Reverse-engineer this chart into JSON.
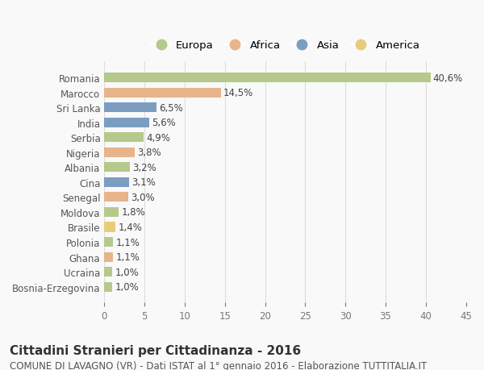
{
  "countries": [
    "Romania",
    "Marocco",
    "Sri Lanka",
    "India",
    "Serbia",
    "Nigeria",
    "Albania",
    "Cina",
    "Senegal",
    "Moldova",
    "Brasile",
    "Polonia",
    "Ghana",
    "Ucraina",
    "Bosnia-Erzegovina"
  ],
  "values": [
    40.6,
    14.5,
    6.5,
    5.6,
    4.9,
    3.8,
    3.2,
    3.1,
    3.0,
    1.8,
    1.4,
    1.1,
    1.1,
    1.0,
    1.0
  ],
  "labels": [
    "40,6%",
    "14,5%",
    "6,5%",
    "5,6%",
    "4,9%",
    "3,8%",
    "3,2%",
    "3,1%",
    "3,0%",
    "1,8%",
    "1,4%",
    "1,1%",
    "1,1%",
    "1,0%",
    "1,0%"
  ],
  "continents": [
    "Europa",
    "Africa",
    "Asia",
    "Asia",
    "Europa",
    "Africa",
    "Europa",
    "Asia",
    "Africa",
    "Europa",
    "America",
    "Europa",
    "Africa",
    "Europa",
    "Europa"
  ],
  "colors": {
    "Europa": "#b5c98a",
    "Africa": "#e8b48a",
    "Asia": "#7b9dc2",
    "America": "#e8cc7a"
  },
  "legend_order": [
    "Europa",
    "Africa",
    "Asia",
    "America"
  ],
  "title": "Cittadini Stranieri per Cittadinanza - 2016",
  "subtitle": "COMUNE DI LAVAGNO (VR) - Dati ISTAT al 1° gennaio 2016 - Elaborazione TUTTITALIA.IT",
  "xlim": [
    0,
    45
  ],
  "xticks": [
    0,
    5,
    10,
    15,
    20,
    25,
    30,
    35,
    40,
    45
  ],
  "background_color": "#f9f9f9",
  "grid_color": "#dddddd",
  "bar_height": 0.65,
  "label_fontsize": 8.5,
  "tick_fontsize": 8.5,
  "title_fontsize": 11,
  "subtitle_fontsize": 8.5
}
